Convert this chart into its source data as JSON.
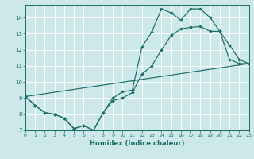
{
  "xlabel": "Humidex (Indice chaleur)",
  "bg_color": "#cce8e8",
  "grid_color": "#b0d0d0",
  "line_color": "#1a6b6b",
  "xlim": [
    0,
    23
  ],
  "ylim": [
    7,
    14.8
  ],
  "xticks": [
    0,
    1,
    2,
    3,
    4,
    5,
    6,
    7,
    8,
    9,
    10,
    11,
    12,
    13,
    14,
    15,
    16,
    17,
    18,
    19,
    20,
    21,
    22,
    23
  ],
  "yticks": [
    7,
    8,
    9,
    10,
    11,
    12,
    13,
    14
  ],
  "line1_x": [
    0,
    1,
    2,
    3,
    4,
    5,
    6,
    7,
    8,
    9,
    10,
    11,
    12,
    13,
    14,
    15,
    16,
    17,
    18,
    19,
    20,
    21,
    22,
    23
  ],
  "line1_y": [
    9.1,
    8.55,
    8.1,
    8.0,
    7.75,
    7.1,
    7.3,
    7.0,
    8.1,
    9.0,
    9.4,
    9.5,
    12.2,
    13.1,
    14.55,
    14.3,
    13.85,
    14.55,
    14.55,
    14.0,
    13.15,
    12.3,
    11.4,
    11.15
  ],
  "line2_x": [
    0,
    23
  ],
  "line2_y": [
    9.1,
    11.15
  ],
  "line3_x": [
    0,
    1,
    2,
    3,
    4,
    5,
    6,
    7,
    8,
    9,
    10,
    11,
    12,
    13,
    14,
    15,
    16,
    17,
    18,
    19,
    20,
    21,
    22,
    23
  ],
  "line3_y": [
    9.1,
    8.55,
    8.1,
    8.0,
    7.75,
    7.1,
    7.3,
    7.0,
    8.1,
    8.85,
    9.0,
    9.35,
    10.5,
    11.0,
    12.0,
    12.9,
    13.3,
    13.4,
    13.45,
    13.15,
    13.15,
    11.4,
    11.15,
    11.15
  ]
}
